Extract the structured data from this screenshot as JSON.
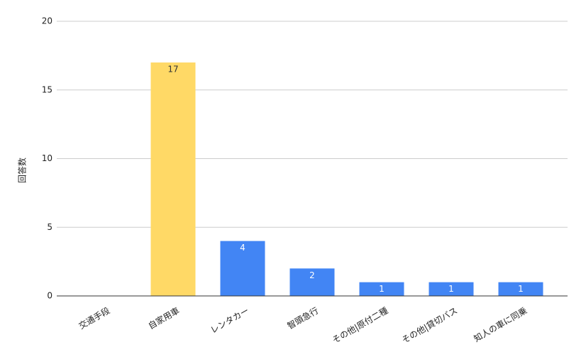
{
  "chart_data": {
    "type": "bar",
    "y_label": "回答数",
    "categories": [
      "交通手段",
      "自家用車",
      "レンタカー",
      "智頭急行",
      "その他|原付二種",
      "その他|貸切バス",
      "知人の車に同乗"
    ],
    "values": [
      null,
      17,
      4,
      2,
      1,
      1,
      1
    ],
    "colors": [
      "#4285f4",
      "#ffd966",
      "#4285f4",
      "#4285f4",
      "#4285f4",
      "#4285f4",
      "#4285f4"
    ],
    "ylim": [
      0,
      20
    ],
    "yticks": [
      0,
      5,
      10,
      15,
      20
    ],
    "grid": true
  }
}
